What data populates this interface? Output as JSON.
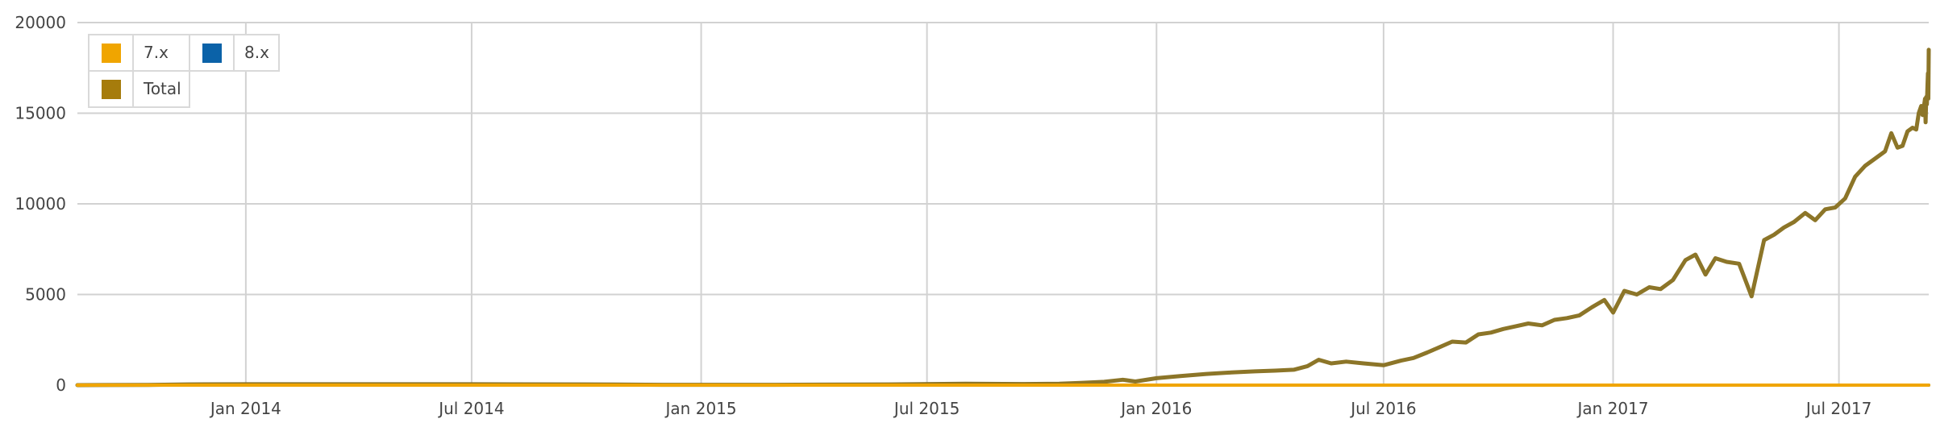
{
  "chart_data": {
    "type": "line",
    "title": "",
    "xlabel": "",
    "ylabel": "",
    "ylim": [
      0,
      20000
    ],
    "xlim": [
      "2013-08-19",
      "2017-09-11"
    ],
    "y_ticks": [
      {
        "value": 0,
        "label": "0"
      },
      {
        "value": 5000,
        "label": "5000"
      },
      {
        "value": 10000,
        "label": "10000"
      },
      {
        "value": 15000,
        "label": "15000"
      },
      {
        "value": 20000,
        "label": "20000"
      }
    ],
    "x_ticks": [
      {
        "date": "2014-01-01",
        "label": "Jan 2014"
      },
      {
        "date": "2014-07-01",
        "label": "Jul 2014"
      },
      {
        "date": "2015-01-01",
        "label": "Jan 2015"
      },
      {
        "date": "2015-07-01",
        "label": "Jul 2015"
      },
      {
        "date": "2016-01-01",
        "label": "Jan 2016"
      },
      {
        "date": "2016-07-01",
        "label": "Jul 2016"
      },
      {
        "date": "2017-01-01",
        "label": "Jan 2017"
      },
      {
        "date": "2017-07-01",
        "label": "Jul 2017"
      }
    ],
    "grid": true,
    "legend_position": "top-left",
    "legend": [
      {
        "name": "7.x",
        "color": "#f0a500"
      },
      {
        "name": "8.x",
        "color": "#0b62a8"
      },
      {
        "name": "Total",
        "color": "#a67c0c"
      }
    ],
    "series": [
      {
        "name": "7.x",
        "color": "#f0a500",
        "points": [
          [
            "2013-08-19",
            0
          ],
          [
            "2014-06-01",
            0
          ],
          [
            "2015-06-01",
            0
          ],
          [
            "2016-01-01",
            0
          ],
          [
            "2016-07-01",
            0
          ],
          [
            "2017-01-01",
            0
          ],
          [
            "2017-09-11",
            0
          ]
        ]
      },
      {
        "name": "8.x",
        "color": "#0b62a8",
        "points": [
          [
            "2013-08-19",
            0
          ],
          [
            "2014-06-01",
            0
          ],
          [
            "2015-06-01",
            0
          ],
          [
            "2016-01-01",
            0
          ],
          [
            "2016-07-01",
            0
          ],
          [
            "2017-01-01",
            0
          ],
          [
            "2017-09-11",
            0
          ]
        ]
      },
      {
        "name": "Total",
        "color": "#8c7528",
        "points": [
          [
            "2013-08-19",
            0
          ],
          [
            "2013-10-15",
            10
          ],
          [
            "2013-11-15",
            40
          ],
          [
            "2014-01-01",
            50
          ],
          [
            "2014-07-01",
            50
          ],
          [
            "2014-10-01",
            40
          ],
          [
            "2014-12-01",
            20
          ],
          [
            "2015-03-01",
            20
          ],
          [
            "2015-06-01",
            40
          ],
          [
            "2015-08-01",
            80
          ],
          [
            "2015-09-15",
            60
          ],
          [
            "2015-10-15",
            80
          ],
          [
            "2015-11-01",
            120
          ],
          [
            "2015-11-20",
            180
          ],
          [
            "2015-12-05",
            300
          ],
          [
            "2015-12-15",
            200
          ],
          [
            "2016-01-01",
            380
          ],
          [
            "2016-01-20",
            500
          ],
          [
            "2016-02-10",
            620
          ],
          [
            "2016-03-01",
            700
          ],
          [
            "2016-03-20",
            760
          ],
          [
            "2016-04-05",
            800
          ],
          [
            "2016-04-20",
            850
          ],
          [
            "2016-05-01",
            1050
          ],
          [
            "2016-05-10",
            1400
          ],
          [
            "2016-05-20",
            1200
          ],
          [
            "2016-06-01",
            1300
          ],
          [
            "2016-06-15",
            1200
          ],
          [
            "2016-07-01",
            1100
          ],
          [
            "2016-07-15",
            1350
          ],
          [
            "2016-07-25",
            1500
          ],
          [
            "2016-08-05",
            1800
          ],
          [
            "2016-08-15",
            2100
          ],
          [
            "2016-08-25",
            2400
          ],
          [
            "2016-09-05",
            2350
          ],
          [
            "2016-09-15",
            2800
          ],
          [
            "2016-09-25",
            2900
          ],
          [
            "2016-10-05",
            3100
          ],
          [
            "2016-10-15",
            3250
          ],
          [
            "2016-10-25",
            3400
          ],
          [
            "2016-11-05",
            3300
          ],
          [
            "2016-11-15",
            3600
          ],
          [
            "2016-11-25",
            3700
          ],
          [
            "2016-12-05",
            3850
          ],
          [
            "2016-12-15",
            4300
          ],
          [
            "2016-12-25",
            4700
          ],
          [
            "2017-01-01",
            4000
          ],
          [
            "2017-01-10",
            5200
          ],
          [
            "2017-01-20",
            5000
          ],
          [
            "2017-01-30",
            5400
          ],
          [
            "2017-02-08",
            5300
          ],
          [
            "2017-02-18",
            5800
          ],
          [
            "2017-02-28",
            6900
          ],
          [
            "2017-03-08",
            7200
          ],
          [
            "2017-03-16",
            6100
          ],
          [
            "2017-03-24",
            7000
          ],
          [
            "2017-04-02",
            6800
          ],
          [
            "2017-04-12",
            6700
          ],
          [
            "2017-04-22",
            4900
          ],
          [
            "2017-05-02",
            8000
          ],
          [
            "2017-05-10",
            8300
          ],
          [
            "2017-05-18",
            8700
          ],
          [
            "2017-05-26",
            9000
          ],
          [
            "2017-06-04",
            9500
          ],
          [
            "2017-06-12",
            9100
          ],
          [
            "2017-06-20",
            9700
          ],
          [
            "2017-06-28",
            9800
          ],
          [
            "2017-07-06",
            10300
          ],
          [
            "2017-07-14",
            11500
          ],
          [
            "2017-07-22",
            12100
          ],
          [
            "2017-07-30",
            12500
          ],
          [
            "2017-08-07",
            12900
          ],
          [
            "2017-08-12",
            13900
          ],
          [
            "2017-08-17",
            13100
          ],
          [
            "2017-08-21",
            13200
          ],
          [
            "2017-08-25",
            14000
          ],
          [
            "2017-08-29",
            14200
          ],
          [
            "2017-09-01",
            14100
          ],
          [
            "2017-09-03",
            15000
          ],
          [
            "2017-09-05",
            15400
          ],
          [
            "2017-09-06",
            14900
          ],
          [
            "2017-09-07",
            15300
          ],
          [
            "2017-09-08",
            15800
          ],
          [
            "2017-09-08T12:00",
            14500
          ],
          [
            "2017-09-09",
            15900
          ],
          [
            "2017-09-09T12:00",
            15500
          ],
          [
            "2017-09-10",
            16600
          ],
          [
            "2017-09-10T08:00",
            17200
          ],
          [
            "2017-09-10T16:00",
            15800
          ],
          [
            "2017-09-11",
            18500
          ]
        ]
      }
    ]
  }
}
